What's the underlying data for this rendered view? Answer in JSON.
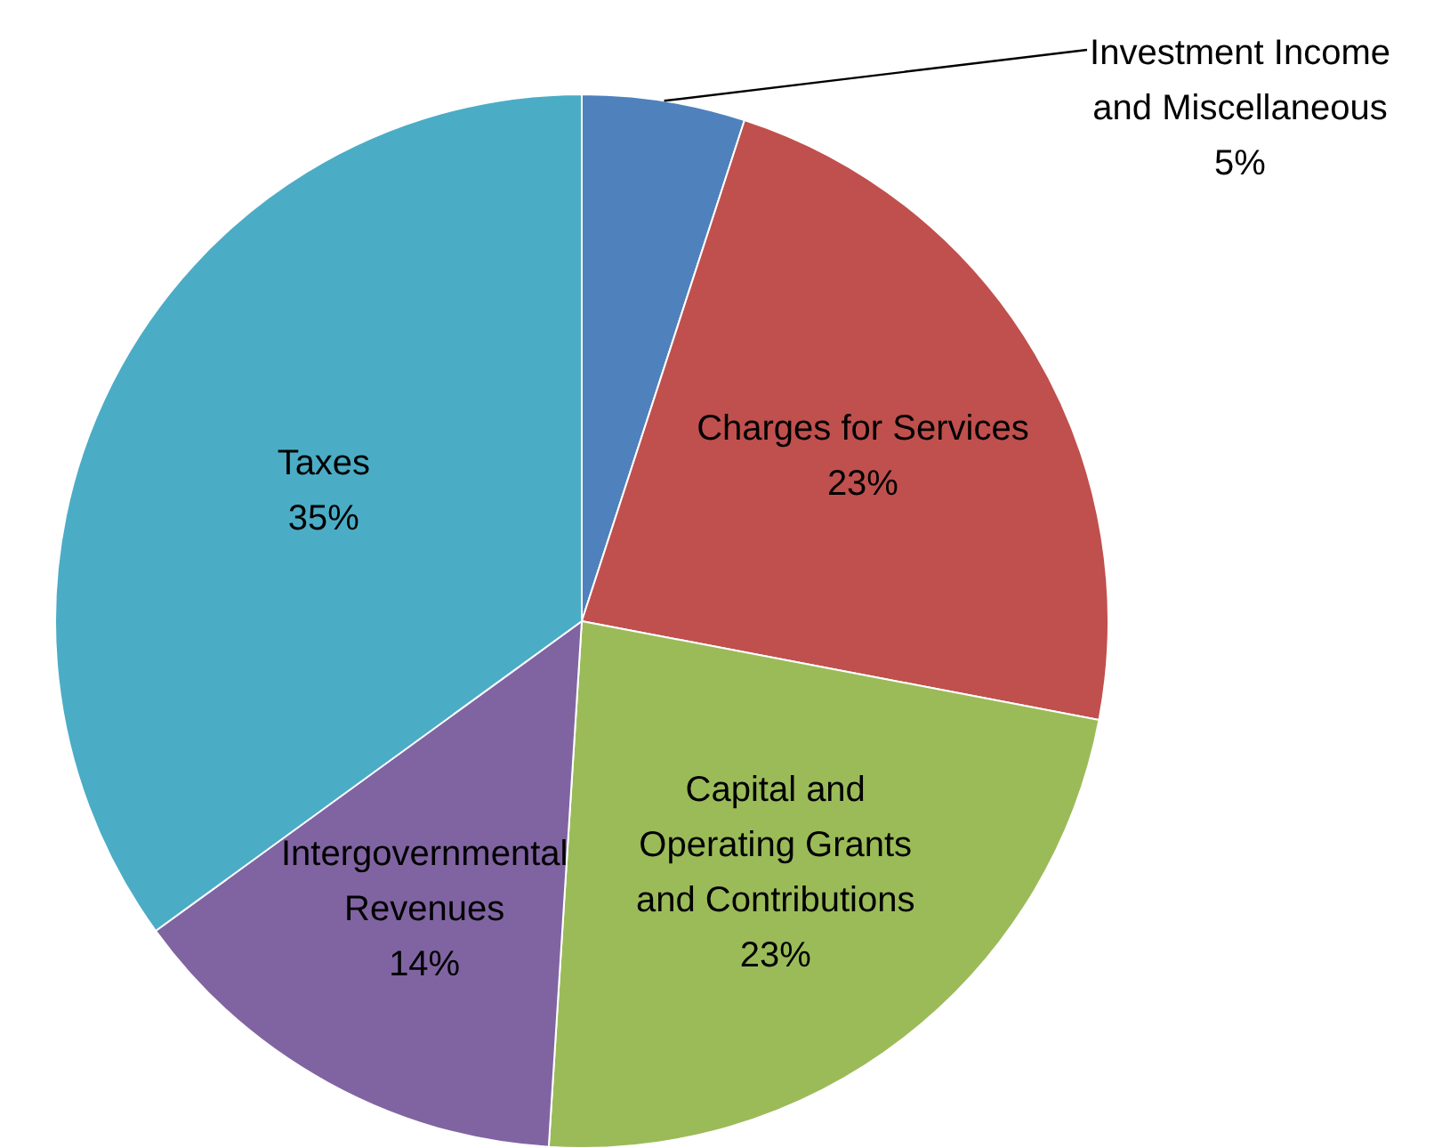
{
  "chart_data": {
    "type": "pie",
    "categories": [
      "Investment Income and Miscellaneous",
      "Charges for Services",
      "Capital and Operating Grants and Contributions",
      "Intergovernmental Revenues",
      "Taxes"
    ],
    "values": [
      5,
      23,
      23,
      14,
      35
    ],
    "value_labels": [
      "5%",
      "23%",
      "23%",
      "14%",
      "35%"
    ],
    "colors": [
      "#4f81bd",
      "#c0504d",
      "#9bbb59",
      "#8064a2",
      "#4bacc6"
    ]
  }
}
